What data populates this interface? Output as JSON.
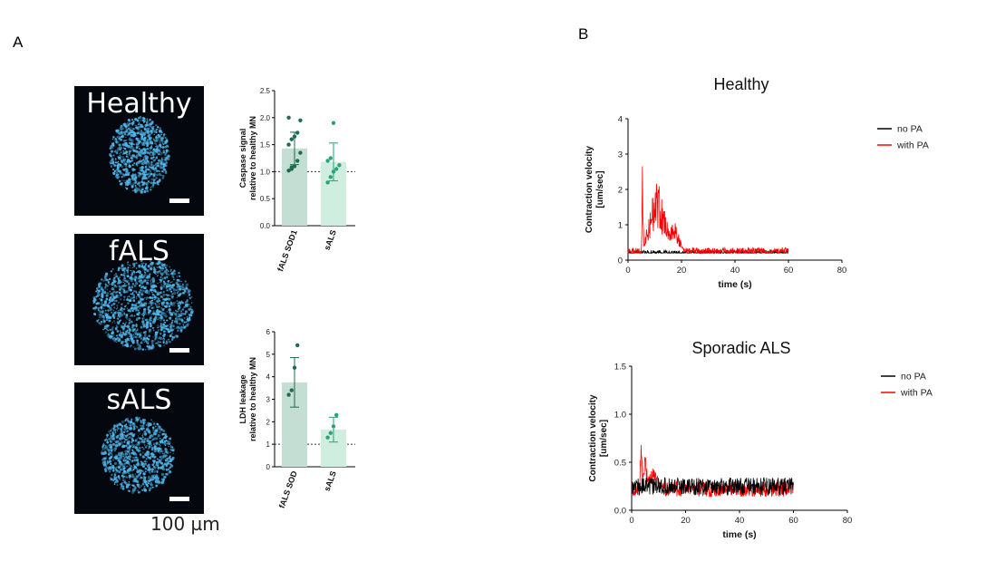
{
  "panels": {
    "a_label": "A",
    "b_label": "B"
  },
  "micrographs": [
    {
      "label": "Healthy"
    },
    {
      "label": "fALS"
    },
    {
      "label": "sALS"
    }
  ],
  "scale_label": "100 µm",
  "colors": {
    "bar_dark": "#c5ded4",
    "bar_light": "#cfeee0",
    "dot_dark": "#1e6b4e",
    "dot_light": "#2aa37a",
    "no_pa": "#000000",
    "with_pa": "#ff0000",
    "cell": "#4fb6ea"
  },
  "chart_data": [
    {
      "type": "bar",
      "id": "caspase",
      "ylabel": "Caspase signal\nrelative to healthy MN",
      "categories": [
        "fALS SOD1",
        "sALS"
      ],
      "values": [
        1.43,
        1.18
      ],
      "errors": [
        0.3,
        0.35
      ],
      "ylim": [
        0,
        2.5
      ],
      "yticks": [
        "0.0",
        "0.5",
        "1.0",
        "1.5",
        "2.0",
        "2.5"
      ],
      "reference_line": 1.0,
      "points": [
        [
          1.02,
          1.05,
          1.1,
          1.2,
          1.35,
          1.5,
          1.6,
          1.65,
          1.72,
          1.95,
          2.0,
          1.08
        ],
        [
          0.8,
          0.9,
          1.0,
          1.05,
          1.12,
          1.2,
          1.25,
          1.9
        ]
      ]
    },
    {
      "type": "bar",
      "id": "ldh",
      "ylabel": "LDH leakage\nrelative to healthy MN",
      "categories": [
        "fALS SOD",
        "sALS"
      ],
      "values": [
        3.75,
        1.65
      ],
      "errors": [
        1.1,
        0.55
      ],
      "ylim": [
        0,
        6
      ],
      "yticks": [
        "0",
        "1",
        "2",
        "3",
        "4",
        "5",
        "6"
      ],
      "reference_line": 1.0,
      "points": [
        [
          3.2,
          3.4,
          4.4,
          5.4
        ],
        [
          1.3,
          1.5,
          1.8,
          2.3
        ]
      ]
    },
    {
      "type": "line",
      "id": "healthy",
      "title": "Healthy",
      "xlabel": "time (s)",
      "ylabel": "Contraction velocity\n[um/sec]",
      "xlim": [
        0,
        80
      ],
      "ylim": [
        0,
        4
      ],
      "xticks": [
        "0",
        "20",
        "40",
        "60",
        "80"
      ],
      "yticks": [
        "0",
        "1",
        "2",
        "3",
        "4"
      ],
      "legend": [
        "no PA",
        "with PA"
      ],
      "series": [
        {
          "name": "no PA",
          "baseline": 0.2,
          "noise": 0.08,
          "xmax": 60
        },
        {
          "name": "with PA",
          "baseline": 0.25,
          "noise": 0.1,
          "xmax": 60,
          "events": [
            {
              "x": 5.5,
              "peak": 3.45,
              "width": 0.5
            },
            {
              "x": 11,
              "peak": 2.45,
              "width": 6
            },
            {
              "x": 17,
              "peak": 1.2,
              "width": 4
            }
          ]
        }
      ]
    },
    {
      "type": "line",
      "id": "sporadic",
      "title": "Sporadic ALS",
      "xlabel": "time (s)",
      "ylabel": "Contraction velocity\n[um/sec]",
      "xlim": [
        0,
        80
      ],
      "ylim": [
        0,
        1.5
      ],
      "xticks": [
        "0",
        "20",
        "40",
        "60",
        "80"
      ],
      "yticks": [
        "0.0",
        "0.5",
        "1.0",
        "1.5"
      ],
      "legend": [
        "no PA",
        "with PA"
      ],
      "series": [
        {
          "name": "no PA",
          "baseline": 0.25,
          "noise": 0.09,
          "xmax": 60
        },
        {
          "name": "with PA",
          "baseline": 0.22,
          "noise": 0.08,
          "xmax": 60,
          "events": [
            {
              "x": 3.5,
              "peak": 1.15,
              "width": 0.5
            },
            {
              "x": 5,
              "peak": 0.62,
              "width": 1.5
            },
            {
              "x": 8,
              "peak": 0.45,
              "width": 4
            }
          ]
        }
      ]
    }
  ]
}
